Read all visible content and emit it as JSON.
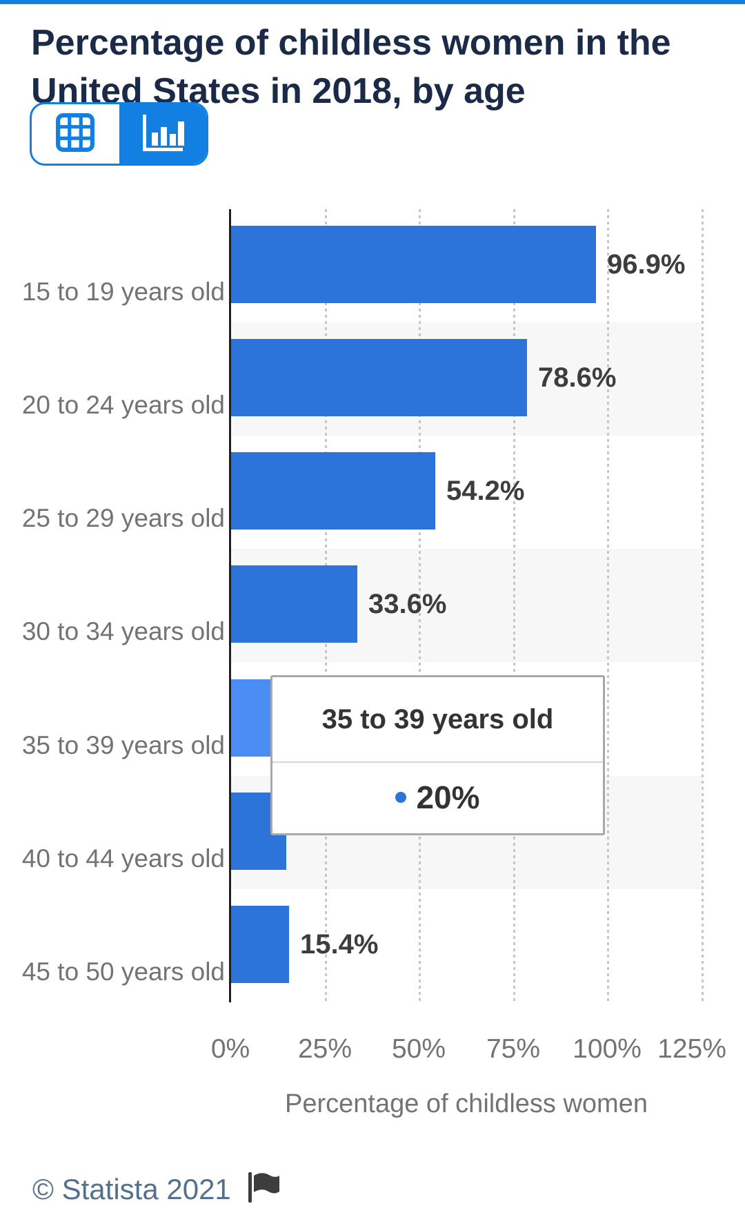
{
  "header": {
    "title": "Percentage of childless women in the United States in 2018, by age"
  },
  "toolbar": {
    "selected_view": "chart",
    "buttons": [
      {
        "name": "table-view",
        "icon": "table-icon",
        "selected": false
      },
      {
        "name": "chart-view",
        "icon": "bar-chart-icon",
        "selected": true
      }
    ]
  },
  "chart_data": {
    "type": "bar",
    "orientation": "horizontal",
    "title": "Percentage of childless women in the United States in 2018, by age",
    "categories": [
      "15 to 19 years old",
      "20 to 24 years old",
      "25 to 29 years old",
      "30 to 34 years old",
      "35 to 39 years old",
      "40 to 44 years old",
      "45 to 50 years old"
    ],
    "values": [
      96.9,
      78.6,
      54.2,
      33.6,
      20,
      14.6,
      15.4
    ],
    "value_labels": [
      "96.9%",
      "78.6%",
      "54.2%",
      "33.6%",
      "20%",
      "",
      "15.4%"
    ],
    "value_labels_hidden_by_tooltip": [
      4,
      5
    ],
    "highlighted_index": 4,
    "xlabel": "Percentage of childless women",
    "x_ticks": [
      {
        "value": 0,
        "label": "0%"
      },
      {
        "value": 25,
        "label": "25%"
      },
      {
        "value": 50,
        "label": "50%"
      },
      {
        "value": 75,
        "label": "75%"
      },
      {
        "value": 100,
        "label": "100%"
      },
      {
        "value": 125,
        "label": "125%"
      }
    ],
    "xlim": [
      0,
      125
    ],
    "grid": "dotted-vertical",
    "legend": "none",
    "tooltip": {
      "category": "35 to 39 years old",
      "value_label": "20%"
    }
  },
  "footer": {
    "copyright": "© Statista 2021"
  },
  "colors": {
    "accent_blue": "#1280e2",
    "bar": "#2d74da",
    "bar_highlighted": "#4c8df5",
    "title_text": "#1b2b47",
    "muted_text": "#737373",
    "value_label_text": "#3d3d3d",
    "row_band": "#f7f7f8",
    "gridline": "#c5c5c5",
    "tooltip_border": "#a8a8a8",
    "tooltip_marker": "#2d74da",
    "footer_text": "#53708e",
    "flag": "#3d3d3d"
  }
}
